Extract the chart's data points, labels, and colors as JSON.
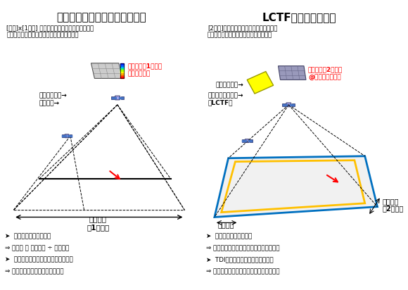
{
  "title_left": "グレーティング分光イメージャ",
  "title_right": "LCTF分光イメージャ",
  "desc_left_line1": "[波長]x[1次元] 空間における輝度分布を逐次記録",
  "desc_left_line2": "（進行方向の空間分解は露光間隔で決まる）",
  "desc_right_line1": "[2次元]の単色画像を記録（フィルターの",
  "desc_right_line2": "波長切り替えでスペクトル情報を取得）",
  "label_left_sensor": "エリアセンサ→",
  "label_left_grating": "回折格子→",
  "label_left_instant": "瞬間視野（1次元）\nのスペクトル",
  "label_left_fov": "瞬時視野\n（1次元）",
  "label_right_sensor": "エリアセンサ→",
  "label_right_filter": "波長可変フィルタ→\n（LCTF）",
  "label_right_instant": "瞬間視野（2次元）\n@指定波長の画像",
  "label_right_fov1": "瞬時視野",
  "label_right_fov2": "瞬時視野",
  "label_right_2d": "（2次元）",
  "bullet_left": [
    "➤  空間分解能に制約あり",
    "⇒ 分解能 ＝ 対地速度 ÷ 撮影周期",
    "➤  瞬時視野のスペクトルは照度が低い",
    "⇒ 原理的に露光時間に制約がある"
  ],
  "bullet_right": [
    "➤  波長分解能に制約あり",
    "⇒ 瞬時視野の重なり部分がスペクトル画像",
    "➤  TDIは衛星進行と電荷転送を同期",
    "⇒ 空間分解能を維持したまま露光を補える"
  ],
  "bg_color": "#ffffff",
  "text_color": "#000000",
  "red_color": "#ff0000",
  "blue_color": "#0070c0",
  "orange_color": "#ffc000",
  "sat_color": "#4472c4"
}
